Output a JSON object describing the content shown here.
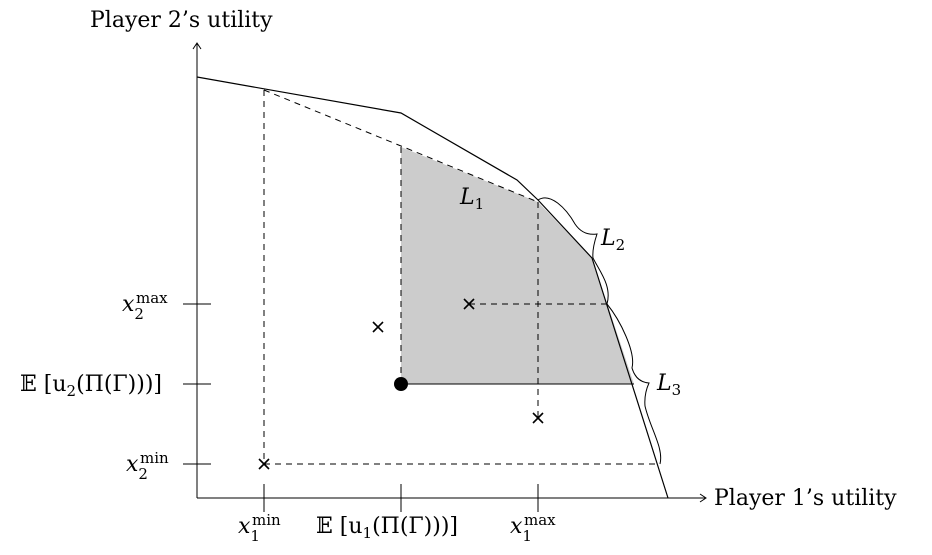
{
  "axes": {
    "y_label": "Player 2’s utility",
    "x_label": "Player 1’s utility"
  },
  "x_ticks": {
    "x1min": {
      "base": "x",
      "sub": "1",
      "sup": "min"
    },
    "eu1": {
      "pre": "𝔼 [u",
      "sub": "1",
      "post": "(Π(Γ)))]"
    },
    "x1max": {
      "base": "x",
      "sub": "1",
      "sup": "max"
    }
  },
  "y_ticks": {
    "x2max": {
      "base": "x",
      "sub": "2",
      "sup": "max"
    },
    "eu2": {
      "pre": "𝔼 [u",
      "sub": "2",
      "post": "(Π(Γ)))]"
    },
    "x2min": {
      "base": "x",
      "sub": "2",
      "sup": "min"
    }
  },
  "segment_labels": {
    "L1": {
      "base": "L",
      "sub": "1"
    },
    "L2": {
      "base": "L",
      "sub": "2"
    },
    "L3": {
      "base": "L",
      "sub": "3"
    }
  },
  "colors": {
    "shaded_region": "#cccccc",
    "line": "#000000"
  }
}
